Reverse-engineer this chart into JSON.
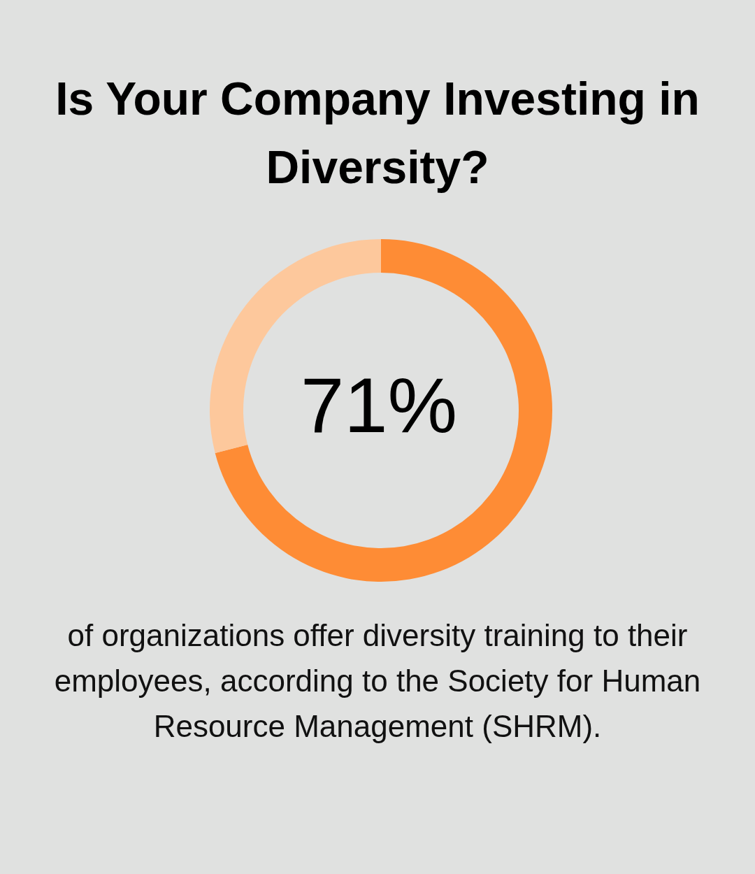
{
  "chart_data": {
    "type": "donut",
    "title": "Is Your Company Investing in Diversity?",
    "categories": [
      null,
      null
    ],
    "values": [
      71,
      29
    ],
    "colors": [
      "#fe8c35",
      "#fdc89c"
    ],
    "annotations": [
      "71%",
      "of organizations offer diversity training to their employees, according to the Society for Human Resource Management (SHRM)."
    ]
  }
}
